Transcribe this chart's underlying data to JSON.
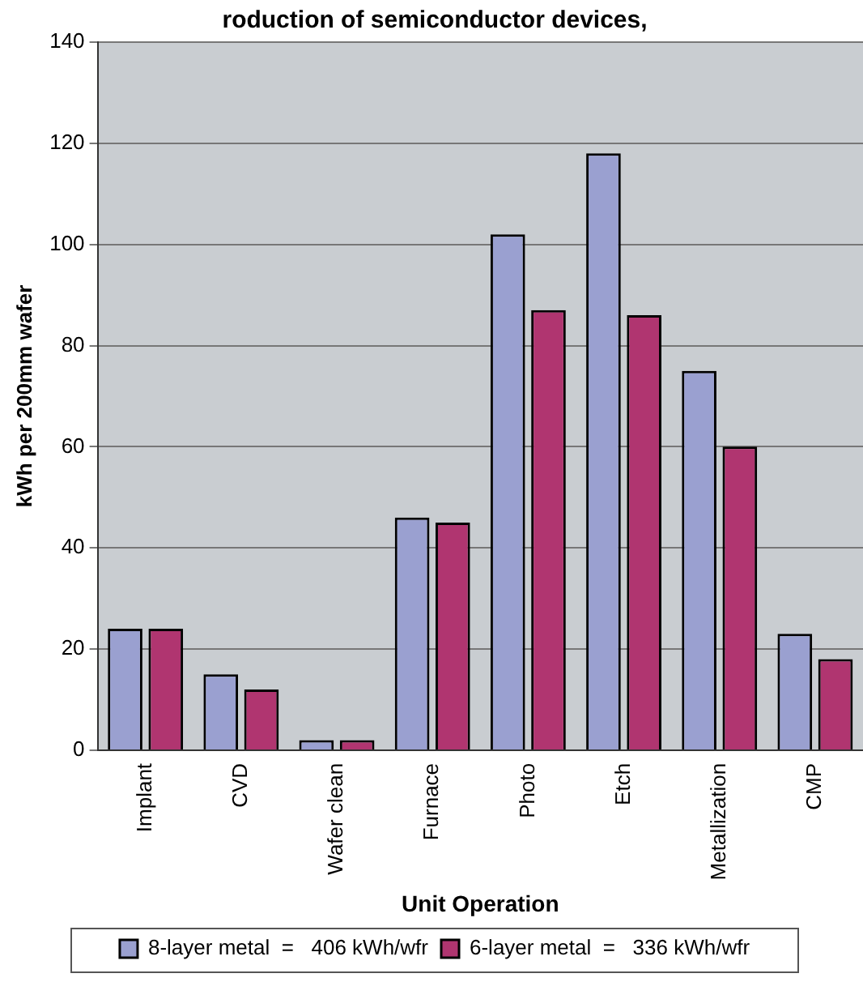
{
  "chart_data": {
    "type": "bar",
    "title": "roduction of semiconductor devices,",
    "categories": [
      "Implant",
      "CVD",
      "Wafer clean",
      "Furnace",
      "Photo",
      "Etch",
      "Metallization",
      "CMP"
    ],
    "series": [
      {
        "name": "8-layer metal  =   406 kWh/wfr",
        "color": "#9aa0d0",
        "values": [
          24,
          15,
          2,
          46,
          102,
          118,
          75,
          23
        ]
      },
      {
        "name": "6-layer metal  =   336 kWh/wfr",
        "color": "#b03570",
        "values": [
          24,
          12,
          2,
          45,
          87,
          86,
          60,
          18
        ]
      }
    ],
    "xlabel": "Unit Operation",
    "ylabel": "kWh per 200mm wafer",
    "ylim": [
      0,
      140
    ],
    "yticks": [
      0,
      20,
      40,
      60,
      80,
      100,
      120,
      140
    ],
    "grid": "y",
    "legend": "bottom"
  }
}
